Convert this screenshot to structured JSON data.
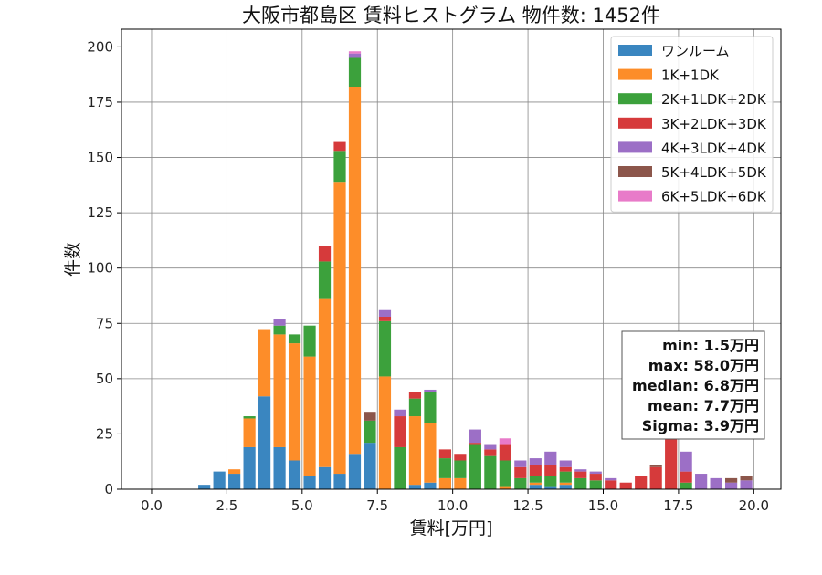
{
  "chart_data": {
    "type": "bar",
    "stacked": true,
    "title": "大阪市都島区 賃料ヒストグラム  物件数: 1452件",
    "xlabel": "賃料[万円]",
    "ylabel": "件数",
    "xlim": [
      -1.0,
      20.9
    ],
    "ylim": [
      0,
      208
    ],
    "x_ticks": [
      0.0,
      2.5,
      5.0,
      7.5,
      10.0,
      12.5,
      15.0,
      17.5,
      20.0
    ],
    "x_tick_labels": [
      "0.0",
      "2.5",
      "5.0",
      "7.5",
      "10.0",
      "12.5",
      "15.0",
      "17.5",
      "20.0"
    ],
    "y_ticks": [
      0,
      25,
      50,
      75,
      100,
      125,
      150,
      175,
      200
    ],
    "y_tick_labels": [
      "0",
      "25",
      "50",
      "75",
      "100",
      "125",
      "150",
      "175",
      "200"
    ],
    "grid": true,
    "legend_position": "top-right",
    "bin_width": 0.5,
    "bin_starts": [
      1.5,
      2.0,
      2.5,
      3.0,
      3.5,
      4.0,
      4.5,
      5.0,
      5.5,
      6.0,
      6.5,
      7.0,
      7.5,
      8.0,
      8.5,
      9.0,
      9.5,
      10.0,
      10.5,
      11.0,
      11.5,
      12.0,
      12.5,
      13.0,
      13.5,
      14.0,
      14.5,
      15.0,
      15.5,
      16.0,
      16.5,
      17.0,
      17.5,
      18.0,
      18.5,
      19.0,
      19.5
    ],
    "series": [
      {
        "name": "ワンルーム",
        "color": "#3a86c0",
        "values": [
          2,
          8,
          7,
          19,
          42,
          19,
          13,
          6,
          10,
          7,
          16,
          21,
          0,
          0,
          2,
          3,
          0,
          0,
          0,
          0,
          0,
          0,
          2,
          1,
          2,
          0,
          0,
          0,
          0,
          0,
          0,
          0,
          0,
          0,
          0,
          0,
          0
        ]
      },
      {
        "name": "1K+1DK",
        "color": "#fd8d29",
        "values": [
          0,
          0,
          2,
          13,
          30,
          51,
          53,
          54,
          76,
          132,
          166,
          0,
          51,
          0,
          31,
          27,
          5,
          5,
          0,
          0,
          1,
          0,
          1,
          0,
          1,
          0,
          0,
          0,
          0,
          0,
          0,
          0,
          0,
          0,
          0,
          0,
          0
        ]
      },
      {
        "name": "2K+1LDK+2DK",
        "color": "#3ca13c",
        "values": [
          0,
          0,
          0,
          1,
          0,
          4,
          4,
          14,
          17,
          14,
          13,
          10,
          25,
          19,
          8,
          14,
          9,
          8,
          20,
          15,
          12,
          5,
          3,
          5,
          5,
          5,
          4,
          0,
          0,
          0,
          0,
          0,
          3,
          0,
          0,
          0,
          0
        ]
      },
      {
        "name": "3K+2LDK+3DK",
        "color": "#d63a3b",
        "values": [
          0,
          0,
          0,
          0,
          0,
          0,
          0,
          0,
          7,
          4,
          0,
          0,
          2,
          14,
          3,
          0,
          4,
          3,
          1,
          3,
          7,
          5,
          5,
          5,
          2,
          3,
          3,
          4,
          3,
          6,
          10,
          25,
          5,
          0,
          0,
          0,
          0
        ]
      },
      {
        "name": "4K+3LDK+4DK",
        "color": "#9c6fc6",
        "values": [
          0,
          0,
          0,
          0,
          0,
          3,
          0,
          0,
          0,
          0,
          2,
          0,
          3,
          3,
          0,
          1,
          0,
          0,
          6,
          2,
          0,
          3,
          3,
          6,
          3,
          1,
          1,
          1,
          0,
          0,
          0,
          0,
          9,
          7,
          5,
          3,
          4
        ]
      },
      {
        "name": "5K+4LDK+5DK",
        "color": "#8c564b",
        "values": [
          0,
          0,
          0,
          0,
          0,
          0,
          0,
          0,
          0,
          0,
          0,
          4,
          0,
          0,
          0,
          0,
          0,
          0,
          0,
          0,
          0,
          0,
          0,
          0,
          0,
          0,
          0,
          0,
          0,
          0,
          1,
          0,
          0,
          0,
          0,
          2,
          2
        ]
      },
      {
        "name": "6K+5LDK+6DK",
        "color": "#e87bc9",
        "values": [
          0,
          0,
          0,
          0,
          0,
          0,
          0,
          0,
          0,
          0,
          1,
          0,
          0,
          0,
          0,
          0,
          0,
          0,
          0,
          0,
          3,
          0,
          0,
          0,
          0,
          0,
          0,
          0,
          0,
          0,
          0,
          0,
          0,
          0,
          0,
          0,
          0
        ]
      }
    ],
    "stats_box": {
      "position": "right-middle",
      "lines": [
        "min: 1.5万円",
        "max: 58.0万円",
        "median: 6.8万円",
        "mean: 7.7万円",
        "Sigma: 3.9万円"
      ]
    }
  }
}
